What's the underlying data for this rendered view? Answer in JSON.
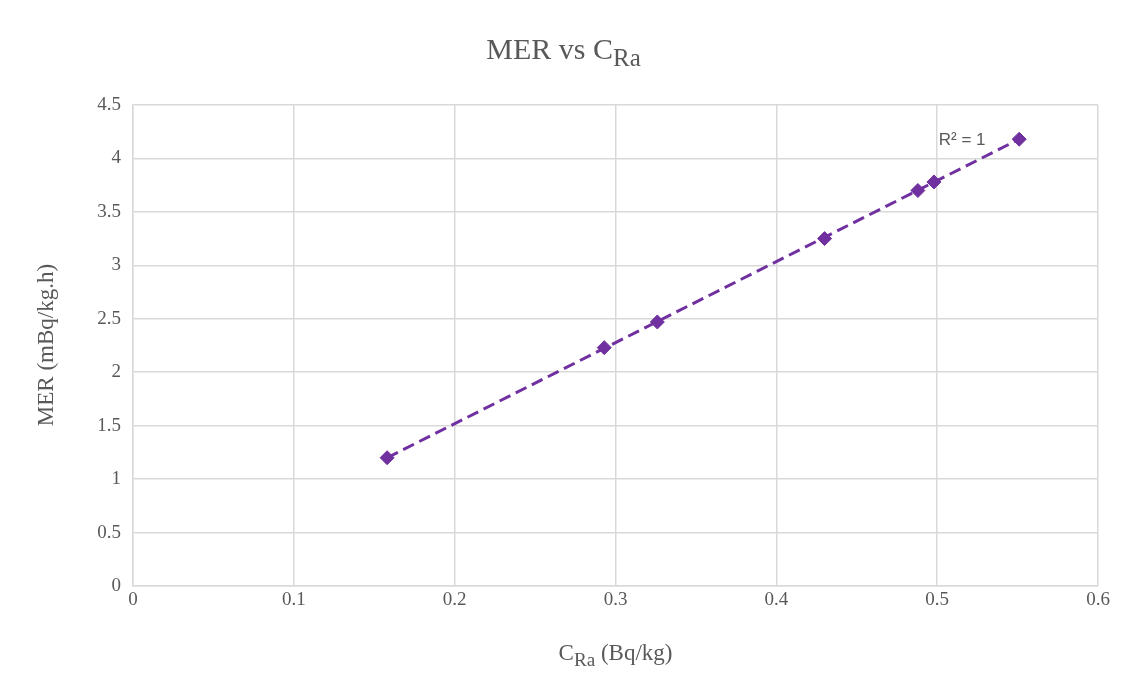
{
  "chart_data": {
    "type": "scatter",
    "title": "MER vs C$_{Ra}$",
    "xlabel": "C$_{Ra}$ (Bq/kg)",
    "ylabel": "MER (mBq/kg.h)",
    "x": [
      0.158,
      0.293,
      0.326,
      0.43,
      0.488,
      0.498,
      0.551
    ],
    "series": [
      {
        "color": "#7030a0",
        "values": [
          1.2,
          2.23,
          2.47,
          3.25,
          3.7,
          3.78,
          4.18
        ],
        "marker": "diamond"
      },
      {
        "type": "line",
        "color": "#7030a0",
        "x": [
          0.158,
          0.551
        ],
        "values": [
          1.2,
          4.18
        ],
        "line_style": "dashed",
        "marker": "none"
      }
    ],
    "annotations": [
      "R² = 1"
    ],
    "xlim": [
      0,
      0.6
    ],
    "xticks": [
      0,
      0.1,
      0.2,
      0.3,
      0.4,
      0.5,
      0.6
    ],
    "ylim": [
      0,
      4.5
    ],
    "yticks": [
      0,
      0.5,
      1,
      1.5,
      2,
      2.5,
      3,
      3.5,
      4,
      4.5
    ],
    "grid": true,
    "legend": false
  }
}
